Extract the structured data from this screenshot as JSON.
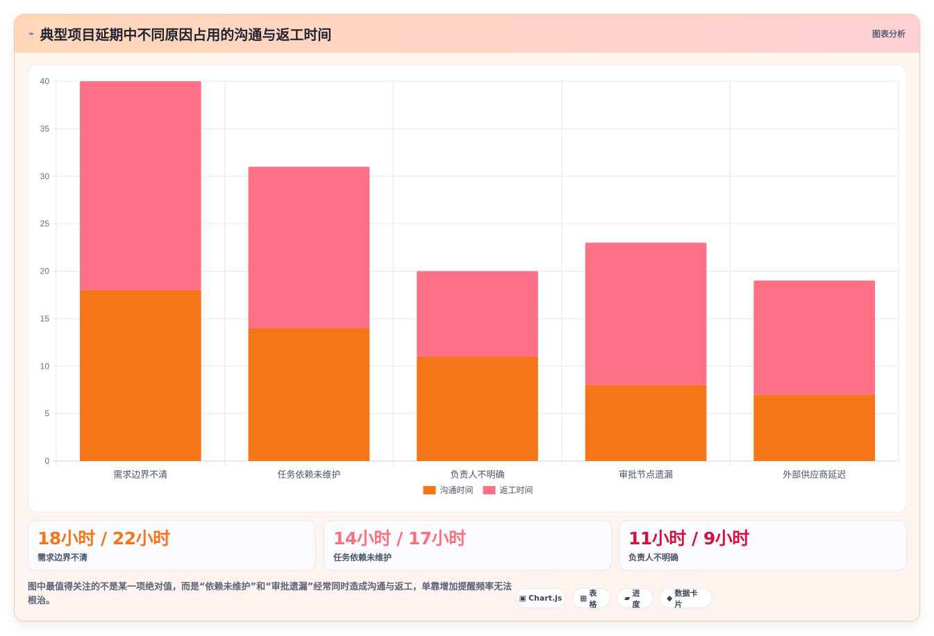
{
  "header": {
    "icon": "⌁",
    "title": "典型项目延期中不同原因占用的沟通与返工时间",
    "tag": "图表分析"
  },
  "chart_data": {
    "type": "bar",
    "stacked": true,
    "categories": [
      "需求边界不清",
      "任务依赖未维护",
      "负责人不明确",
      "审批节点遗漏",
      "外部供应商延迟"
    ],
    "series": [
      {
        "name": "沟通时间",
        "values": [
          18,
          14,
          11,
          8,
          7
        ],
        "color": "#f57518"
      },
      {
        "name": "返工时间",
        "values": [
          22,
          17,
          9,
          15,
          12
        ],
        "color": "#fc7186"
      }
    ],
    "ylim": [
      0,
      40
    ],
    "yticks": [
      0,
      5,
      10,
      15,
      20,
      25,
      30,
      35,
      40
    ],
    "grid": true,
    "legend_position": "bottom"
  },
  "stats": [
    {
      "value": "18小时 / 22小时",
      "label": "需求边界不清",
      "color": "#f57518"
    },
    {
      "value": "14小时 / 17小时",
      "label": "任务依赖未维护",
      "color": "#f5727e"
    },
    {
      "value": "11小时 / 9小时",
      "label": "负责人不明确",
      "color": "#d3123f"
    }
  ],
  "note": "图中最值得关注的不是某一项绝对值，而是“依赖未维护”和“审批遗漏”经常同时造成沟通与返工，单靠增加提醒频率无法根治。",
  "chips": [
    {
      "icon": "▣",
      "label": "Chart.js"
    },
    {
      "icon": "▦",
      "label": "表格"
    },
    {
      "icon": "▰",
      "label": "进度"
    },
    {
      "icon": "◆",
      "label": "数据卡片"
    }
  ]
}
